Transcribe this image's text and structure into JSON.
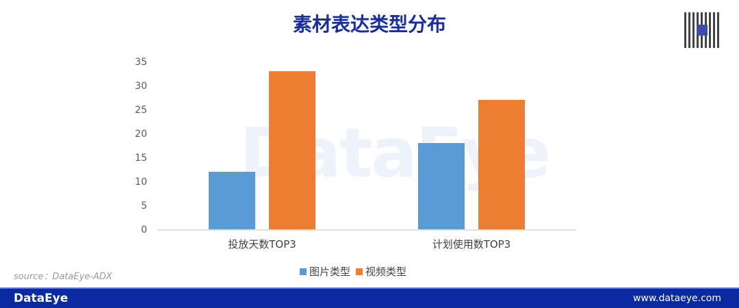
{
  "title": "素材表达类型分布",
  "source": "source：DataEye-ADX",
  "watermark": "DataEye",
  "footer": {
    "logo": "DataEye",
    "url": "www.dataeye.com",
    "color": "#0b2aa2"
  },
  "chart_data": {
    "type": "bar",
    "title": "素材表达类型分布",
    "categories": [
      "投放天数TOP3",
      "计划使用数TOP3"
    ],
    "series": [
      {
        "name": "图片类型",
        "color": "#5b9bd5",
        "values": [
          12,
          18
        ]
      },
      {
        "name": "视频类型",
        "color": "#ed7d31",
        "values": [
          33,
          27
        ]
      }
    ],
    "ylim": [
      0,
      35
    ],
    "yticks": [
      0,
      5,
      10,
      15,
      20,
      25,
      30,
      35
    ],
    "grid": false,
    "legend": "bottom"
  }
}
